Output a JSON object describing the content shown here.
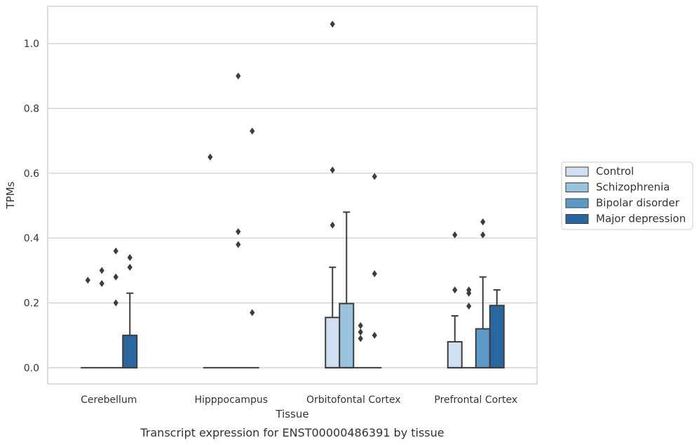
{
  "caption": "Transcript expression for ENST00000486391 by tissue",
  "chart_data": {
    "type": "box",
    "xlabel": "Tissue",
    "ylabel": "TPMs",
    "ylim": [
      -0.05,
      1.115
    ],
    "yticks": [
      "0.0",
      "0.2",
      "0.4",
      "0.6",
      "0.8",
      "1.0"
    ],
    "grid": true,
    "legend_position": "right",
    "categories": [
      "Cerebellum",
      "Hipppocampus",
      "Orbitofontal Cortex",
      "Prefrontal Cortex"
    ],
    "series": [
      {
        "name": "Control",
        "color": "#d0e0f2",
        "boxes": [
          {
            "q1": 0,
            "median": 0,
            "q3": 0,
            "whisker_low": 0,
            "whisker_high": 0,
            "outliers": [
              0.27
            ]
          },
          {
            "q1": 0,
            "median": 0,
            "q3": 0,
            "whisker_low": 0,
            "whisker_high": 0,
            "outliers": [
              0.65
            ]
          },
          {
            "q1": 0,
            "median": 0,
            "q3": 0.155,
            "whisker_low": 0,
            "whisker_high": 0.31,
            "outliers": [
              0.44,
              0.61,
              1.06
            ]
          },
          {
            "q1": 0,
            "median": 0,
            "q3": 0.08,
            "whisker_low": 0,
            "whisker_high": 0.16,
            "outliers": [
              0.24,
              0.41
            ]
          }
        ]
      },
      {
        "name": "Schizophrenia",
        "color": "#9ac3de",
        "boxes": [
          {
            "q1": 0,
            "median": 0,
            "q3": 0,
            "whisker_low": 0,
            "whisker_high": 0,
            "outliers": [
              0.26,
              0.3
            ]
          },
          {
            "q1": 0,
            "median": 0,
            "q3": 0,
            "whisker_low": 0,
            "whisker_high": 0,
            "outliers": []
          },
          {
            "q1": 0,
            "median": 0,
            "q3": 0.198,
            "whisker_low": 0,
            "whisker_high": 0.48,
            "outliers": []
          },
          {
            "q1": 0,
            "median": 0,
            "q3": 0,
            "whisker_low": 0,
            "whisker_high": 0,
            "outliers": [
              0.19,
              0.23,
              0.24
            ]
          }
        ]
      },
      {
        "name": "Bipolar disorder",
        "color": "#5b9ac7",
        "boxes": [
          {
            "q1": 0,
            "median": 0,
            "q3": 0,
            "whisker_low": 0,
            "whisker_high": 0,
            "outliers": [
              0.2,
              0.28,
              0.36
            ]
          },
          {
            "q1": 0,
            "median": 0,
            "q3": 0,
            "whisker_low": 0,
            "whisker_high": 0,
            "outliers": [
              0.38,
              0.42,
              0.9
            ]
          },
          {
            "q1": 0,
            "median": 0,
            "q3": 0,
            "whisker_low": 0,
            "whisker_high": 0,
            "outliers": [
              0.09,
              0.11,
              0.13
            ]
          },
          {
            "q1": 0,
            "median": 0,
            "q3": 0.12,
            "whisker_low": 0,
            "whisker_high": 0.28,
            "outliers": [
              0.41,
              0.45
            ]
          }
        ]
      },
      {
        "name": "Major depression",
        "color": "#2a66a2",
        "boxes": [
          {
            "q1": 0,
            "median": 0,
            "q3": 0.1,
            "whisker_low": 0,
            "whisker_high": 0.23,
            "outliers": [
              0.31,
              0.34
            ]
          },
          {
            "q1": 0,
            "median": 0,
            "q3": 0,
            "whisker_low": 0,
            "whisker_high": 0,
            "outliers": [
              0.17,
              0.73
            ]
          },
          {
            "q1": 0,
            "median": 0,
            "q3": 0,
            "whisker_low": 0,
            "whisker_high": 0,
            "outliers": [
              0.1,
              0.29,
              0.59
            ]
          },
          {
            "q1": 0,
            "median": 0,
            "q3": 0.192,
            "whisker_low": 0,
            "whisker_high": 0.24,
            "outliers": []
          }
        ]
      }
    ]
  }
}
